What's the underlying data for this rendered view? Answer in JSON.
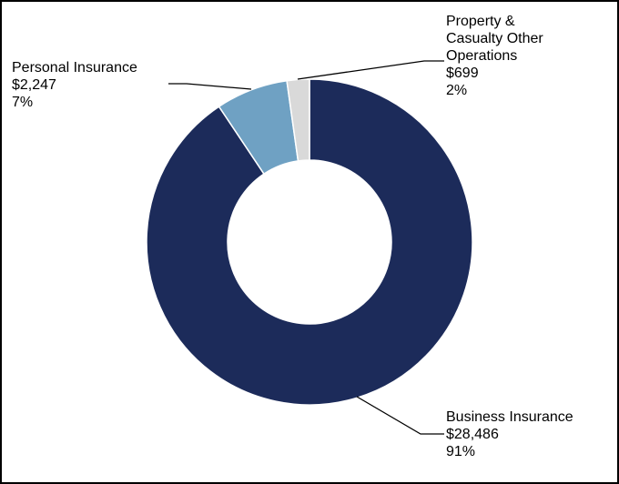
{
  "chart_data": {
    "type": "pie",
    "title": "",
    "donut": true,
    "series": [
      {
        "name": "Business Insurance",
        "value_label": "$28,486",
        "percent_label": "91%",
        "value": 28486,
        "color": "#1c2b5a"
      },
      {
        "name": "Personal Insurance",
        "value_label": "$2,247",
        "percent_label": "7%",
        "value": 2247,
        "color": "#6fa1c3"
      },
      {
        "name": "Property & Casualty Other Operations",
        "value_label": "$699",
        "percent_label": "2%",
        "value": 699,
        "color": "#d9d9d9"
      }
    ],
    "labels": {
      "business": {
        "line1": "Business Insurance",
        "line2": "$28,486",
        "line3": "91%"
      },
      "personal": {
        "line1": "Personal Insurance",
        "line2": "$2,247",
        "line3": "7%"
      },
      "pc_other": {
        "line1": "Property &",
        "line2": "Casualty Other",
        "line3": "Operations",
        "line4": "$699",
        "line5": "2%"
      }
    }
  }
}
